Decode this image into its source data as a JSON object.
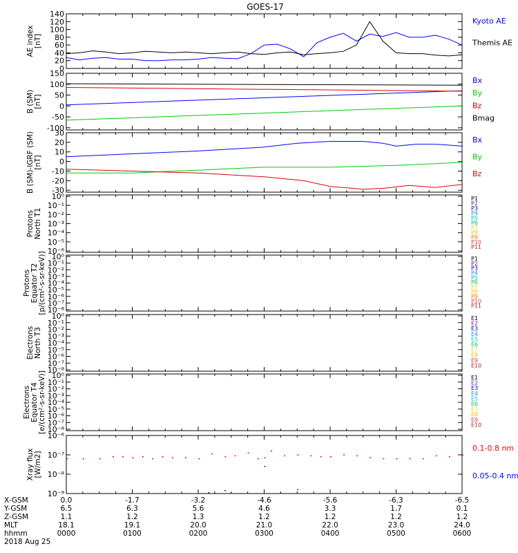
{
  "title": "GOES-17",
  "footer": {
    "labels": [
      "X-GSM",
      "Y-GSM",
      "Z-GSM",
      "MLT",
      "hhmm",
      "2018 Aug 25"
    ],
    "columns": [
      {
        "x": "0.0",
        "y": "6.5",
        "z": "1.1",
        "mlt": "18.1",
        "hhmm": "0000"
      },
      {
        "x": "-1.7",
        "y": "6.3",
        "z": "1.2",
        "mlt": "19.1",
        "hhmm": "0100"
      },
      {
        "x": "-3.2",
        "y": "5.6",
        "z": "1.3",
        "mlt": "20.0",
        "hhmm": "0200"
      },
      {
        "x": "-4.6",
        "y": "4.6",
        "z": "1.2",
        "mlt": "21.0",
        "hhmm": "0300"
      },
      {
        "x": "-5.6",
        "y": "3.3",
        "z": "1.2",
        "mlt": "22.0",
        "hhmm": "0400"
      },
      {
        "x": "-6.3",
        "y": "1.7",
        "z": "1.2",
        "mlt": "23.0",
        "hhmm": "0500"
      },
      {
        "x": "-6.5",
        "y": "0.1",
        "z": "1.2",
        "mlt": "24.0",
        "hhmm": "0600"
      }
    ]
  },
  "chart_data": [
    {
      "id": "ae",
      "type": "line",
      "ylabel": [
        "AE index",
        "[nT]"
      ],
      "ylim": [
        0,
        140
      ],
      "yticks": [
        "0",
        "20",
        "40",
        "60",
        "80",
        "100",
        "120",
        "140"
      ],
      "xlim": [
        0,
        6
      ],
      "series": [
        {
          "name": "Kyoto AE",
          "color": "#0000ff",
          "x": [
            0,
            0.2,
            0.4,
            0.6,
            0.8,
            1.0,
            1.2,
            1.4,
            1.6,
            1.8,
            2.0,
            2.2,
            2.4,
            2.6,
            2.8,
            3.0,
            3.2,
            3.4,
            3.6,
            3.8,
            4.0,
            4.2,
            4.4,
            4.6,
            4.8,
            5.0,
            5.2,
            5.4,
            5.6,
            5.8,
            6.0
          ],
          "y": [
            28,
            22,
            26,
            28,
            24,
            24,
            20,
            20,
            22,
            22,
            24,
            28,
            26,
            25,
            38,
            60,
            62,
            50,
            30,
            66,
            80,
            90,
            70,
            88,
            82,
            92,
            80,
            80,
            85,
            75,
            60
          ]
        },
        {
          "name": "Themis AE",
          "color": "#000000",
          "x": [
            0,
            0.2,
            0.4,
            0.6,
            0.8,
            1.0,
            1.2,
            1.4,
            1.6,
            1.8,
            2.0,
            2.2,
            2.4,
            2.6,
            2.8,
            3.0,
            3.2,
            3.4,
            3.6,
            3.8,
            4.0,
            4.2,
            4.4,
            4.6,
            4.8,
            5.0,
            5.2,
            5.4,
            5.6,
            5.8,
            6.0
          ],
          "y": [
            38,
            40,
            45,
            42,
            38,
            40,
            44,
            42,
            40,
            42,
            40,
            38,
            40,
            42,
            38,
            36,
            40,
            42,
            35,
            38,
            40,
            44,
            60,
            120,
            70,
            40,
            38,
            38,
            34,
            32,
            35
          ]
        }
      ]
    },
    {
      "id": "bsm",
      "type": "line",
      "ylabel": [
        "B (SM)",
        "[nT]"
      ],
      "ylim": [
        -110,
        150
      ],
      "yticks": [
        "-100",
        "-50",
        "0",
        "50",
        "100",
        "150"
      ],
      "ytick_values": [
        -100,
        -50,
        0,
        50,
        100,
        150
      ],
      "xlim": [
        0,
        6
      ],
      "series": [
        {
          "name": "Bx",
          "color": "#0000ff",
          "x": [
            0,
            6
          ],
          "y": [
            5,
            70
          ]
        },
        {
          "name": "By",
          "color": "#00cc00",
          "x": [
            0,
            6
          ],
          "y": [
            -65,
            0
          ]
        },
        {
          "name": "Bz",
          "color": "#dd0000",
          "x": [
            0,
            6
          ],
          "y": [
            85,
            68
          ]
        },
        {
          "name": "Bmag",
          "color": "#000000",
          "x": [
            0,
            6
          ],
          "y": [
            102,
            95
          ]
        }
      ]
    },
    {
      "id": "bigrf",
      "type": "line",
      "ylabel": [
        "B (SM)-IGRF (SM)",
        "[nT]"
      ],
      "ylim": [
        -32,
        30
      ],
      "yticks": [
        "-30",
        "-20",
        "-10",
        "0",
        "10",
        "20",
        "30"
      ],
      "ytick_values": [
        -30,
        -20,
        -10,
        0,
        10,
        20,
        30
      ],
      "xlim": [
        0,
        6
      ],
      "series": [
        {
          "name": "Bx",
          "color": "#0000ff",
          "x": [
            0,
            1,
            2,
            3,
            3.5,
            4,
            4.5,
            4.8,
            5.0,
            5.3,
            5.6,
            6.0
          ],
          "y": [
            5,
            8,
            11,
            15,
            19,
            21,
            21,
            19,
            16,
            18,
            18,
            16
          ]
        },
        {
          "name": "By",
          "color": "#00cc00",
          "x": [
            0,
            1,
            2,
            3,
            4,
            5,
            6
          ],
          "y": [
            -12,
            -12,
            -9,
            -6,
            -6,
            -4,
            -1
          ]
        },
        {
          "name": "Bz",
          "color": "#dd0000",
          "x": [
            0,
            1,
            2,
            3,
            3.6,
            4,
            4.5,
            4.8,
            5.2,
            5.6,
            6.0
          ],
          "y": [
            -8,
            -10,
            -12,
            -16,
            -20,
            -26,
            -29,
            -28,
            -25,
            -27,
            -24
          ]
        }
      ]
    },
    {
      "id": "pn",
      "type": "line",
      "ylabel": [
        "Protons",
        "North T1"
      ],
      "yticks": [
        "10⁻⁶",
        "10⁻⁵",
        "10⁻⁴",
        "10⁻³",
        "10⁻²",
        "10⁻¹",
        "10⁰"
      ],
      "legend": [
        {
          "name": "P1",
          "color": "#000000"
        },
        {
          "name": "P2",
          "color": "#6a1b9a"
        },
        {
          "name": "P3",
          "color": "#0000cc"
        },
        {
          "name": "P4",
          "color": "#1e88e5"
        },
        {
          "name": "P5",
          "color": "#00bcd4"
        },
        {
          "name": "P6",
          "color": "#00c853"
        },
        {
          "name": "P7",
          "color": "#cddc39"
        },
        {
          "name": "P8",
          "color": "#ffc107"
        },
        {
          "name": "P9",
          "color": "#ff6f00"
        },
        {
          "name": "P10",
          "color": "#e53935"
        },
        {
          "name": "P11",
          "color": "#b71c1c"
        }
      ]
    },
    {
      "id": "pe",
      "type": "line",
      "ylabel": [
        "Protons",
        "Equator T2",
        "[p/(cm²-s-sr-keV)]"
      ],
      "yticks": [
        "10⁻⁸",
        "10⁻⁷",
        "10⁻⁶",
        "10⁻⁵",
        "10⁻⁴",
        "10⁻³",
        "10⁻²",
        "10⁻¹",
        "10⁰"
      ],
      "legend": [
        {
          "name": "P1",
          "color": "#000000"
        },
        {
          "name": "P2",
          "color": "#6a1b9a"
        },
        {
          "name": "P3",
          "color": "#0000cc"
        },
        {
          "name": "P4",
          "color": "#1e88e5"
        },
        {
          "name": "P5",
          "color": "#00bcd4"
        },
        {
          "name": "P6",
          "color": "#00c853"
        },
        {
          "name": "P7",
          "color": "#cddc39"
        },
        {
          "name": "P8",
          "color": "#ffc107"
        },
        {
          "name": "P9",
          "color": "#ff6f00"
        },
        {
          "name": "P10",
          "color": "#e53935"
        },
        {
          "name": "P11",
          "color": "#b71c1c"
        }
      ]
    },
    {
      "id": "en",
      "type": "line",
      "ylabel": [
        "Electrons",
        "North T3"
      ],
      "yticks": [
        "10⁻⁸",
        "10⁻⁷",
        "10⁻⁶",
        "10⁻⁵",
        "10⁻⁴",
        "10⁻³",
        "10⁻²",
        "10⁻¹",
        "10⁰"
      ],
      "legend": [
        {
          "name": "E1",
          "color": "#000000"
        },
        {
          "name": "E2",
          "color": "#6a1b9a"
        },
        {
          "name": "E3",
          "color": "#0000cc"
        },
        {
          "name": "E4",
          "color": "#1e88e5"
        },
        {
          "name": "E5",
          "color": "#00bcd4"
        },
        {
          "name": "E6",
          "color": "#00c853"
        },
        {
          "name": "E7",
          "color": "#cddc39"
        },
        {
          "name": "E8",
          "color": "#ffc107"
        },
        {
          "name": "E9",
          "color": "#e53935"
        },
        {
          "name": "E10",
          "color": "#b71c1c"
        }
      ]
    },
    {
      "id": "ee",
      "type": "line",
      "ylabel": [
        "Electrons",
        "Equator T4",
        "[e/(cm²-s-sr-keV)]"
      ],
      "yticks": [
        "10⁻⁸",
        "10⁻⁷",
        "10⁻⁶",
        "10⁻⁵",
        "10⁻⁴",
        "10⁻³",
        "10⁻²",
        "10⁻¹",
        "10⁰"
      ],
      "legend": [
        {
          "name": "E1",
          "color": "#000000"
        },
        {
          "name": "E2",
          "color": "#6a1b9a"
        },
        {
          "name": "E3",
          "color": "#0000cc"
        },
        {
          "name": "E4",
          "color": "#1e88e5"
        },
        {
          "name": "E5",
          "color": "#00bcd4"
        },
        {
          "name": "E6",
          "color": "#00c853"
        },
        {
          "name": "E7",
          "color": "#cddc39"
        },
        {
          "name": "E8",
          "color": "#ffc107"
        },
        {
          "name": "E9",
          "color": "#e53935"
        },
        {
          "name": "E10",
          "color": "#b71c1c"
        }
      ]
    },
    {
      "id": "xray",
      "type": "scatter",
      "ylabel": [
        "Xray flux",
        "[W/m2]"
      ],
      "ylim_log": [
        -9,
        -6
      ],
      "yticks": [
        "10⁻⁹",
        "10⁻⁸",
        "10⁻⁷",
        "10⁻⁶"
      ],
      "xlim": [
        0,
        6
      ],
      "series": [
        {
          "name": "0.1-0.8 nm",
          "color": "#ff0000",
          "x": [
            0.0,
            0.25,
            0.5,
            0.7,
            0.85,
            1.0,
            1.15,
            1.3,
            1.45,
            1.6,
            1.8,
            2.0,
            2.2,
            2.4,
            2.55,
            2.75,
            2.9,
            3.0,
            3.1,
            3.3,
            3.5,
            3.7,
            3.85,
            4.0,
            4.2,
            4.4,
            4.6,
            4.8,
            5.0,
            5.2,
            5.4,
            5.6,
            5.8,
            6.0
          ],
          "y": [
            -7.2,
            -7.2,
            -7.2,
            -7.1,
            -7.1,
            -7.15,
            -7.1,
            -7.2,
            -7.1,
            -7.15,
            -7.15,
            -7.2,
            -6.95,
            -7.1,
            -7.05,
            -6.9,
            -7.2,
            -7.15,
            -6.8,
            -7.05,
            -7.0,
            -7.05,
            -7.1,
            -7.1,
            -7.0,
            -7.05,
            -7.15,
            -7.2,
            -7.2,
            -7.2,
            -7.2,
            -7.05,
            -7.1,
            -7.0
          ]
        },
        {
          "name": "0.05-0.4 nm",
          "color": "#0000ff",
          "x": [
            2.15,
            2.4,
            3.0,
            3.5
          ],
          "y": [
            -8.95,
            -8.85,
            -7.6,
            -8.8
          ]
        }
      ]
    }
  ]
}
